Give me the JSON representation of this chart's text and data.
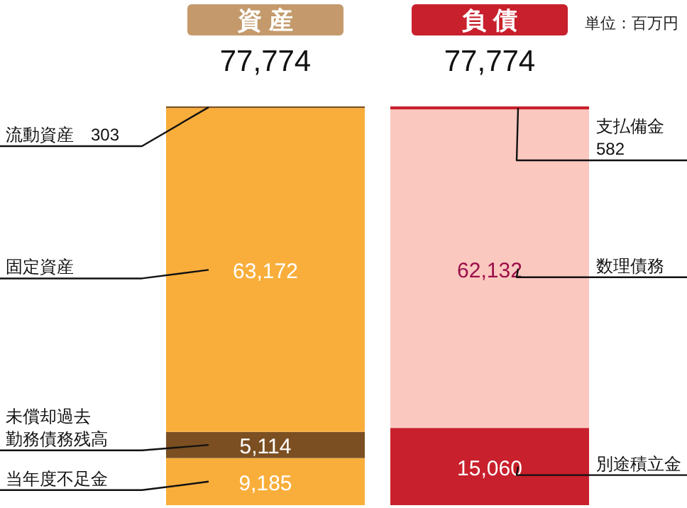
{
  "chart_data": {
    "type": "bar",
    "stacked": true,
    "categories": [
      "資 産",
      "負 債"
    ],
    "totals": [
      "77,774",
      "77,774"
    ],
    "annotations": [
      "単位：百万円"
    ],
    "series": [
      {
        "name": "当年度不足金",
        "color": "#f9ae3b",
        "values": [
          9185,
          null
        ],
        "value_labels": [
          "9,185",
          null
        ]
      },
      {
        "name": "未償却過去勤務債務残高",
        "color": "#7b4f21",
        "values": [
          5114,
          null
        ],
        "value_labels": [
          "5,114",
          null
        ]
      },
      {
        "name": "固定資産",
        "color": "#f9ae3b",
        "values": [
          63172,
          null
        ],
        "value_labels": [
          "63,172",
          null
        ]
      },
      {
        "name": "流動資産",
        "color": "#7b4f21",
        "values": [
          303,
          null
        ],
        "value_labels": [
          "303",
          null
        ]
      },
      {
        "name": "別途積立金",
        "color": "#c8202c",
        "values": [
          null,
          15060
        ],
        "value_labels": [
          null,
          "15,060"
        ]
      },
      {
        "name": "数理債務",
        "color": "#fbc8c0",
        "values": [
          null,
          62132
        ],
        "value_labels": [
          null,
          "62,132"
        ]
      },
      {
        "name": "支払備金",
        "color": "#c8202c",
        "values": [
          null,
          582
        ],
        "value_labels": [
          null,
          "582"
        ]
      }
    ]
  }
}
